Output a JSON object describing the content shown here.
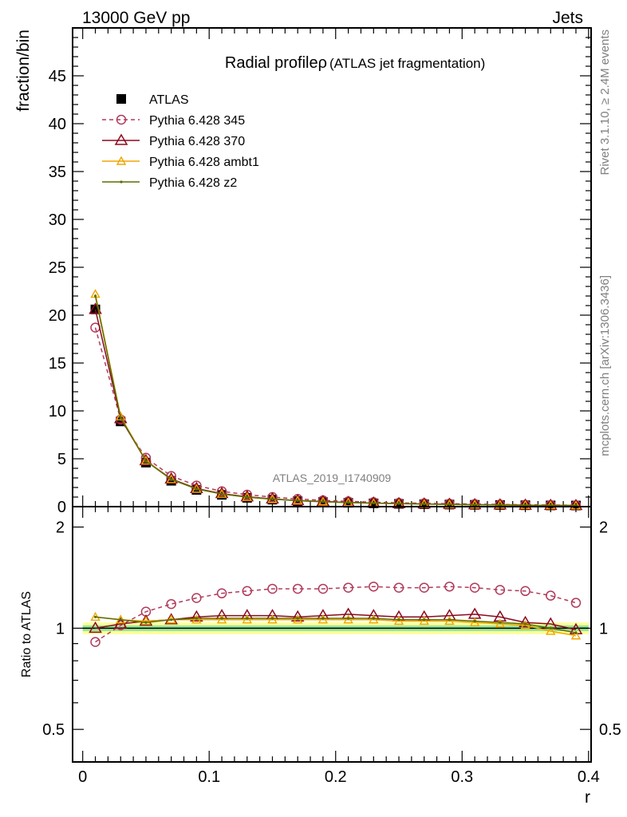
{
  "header": {
    "left": "13000 GeV pp",
    "right": "Jets"
  },
  "side_labels": {
    "rivet": "Rivet 3.1.10, ≥ 2.4M events",
    "mcplots": "mcplots.cern.ch [arXiv:1306.3436]"
  },
  "watermark": "ATLAS_2019_I1740909",
  "chart_data": [
    {
      "type": "line",
      "panel": "main",
      "title": "Radial profileρ",
      "subtitle": "(ATLAS jet fragmentation)",
      "xlabel": "",
      "ylabel": "fraction/bin",
      "xlim": [
        -0.008,
        0.402
      ],
      "ylim": [
        0,
        50
      ],
      "yticks": [
        0,
        5,
        10,
        15,
        20,
        25,
        30,
        35,
        40,
        45
      ],
      "ytick_labels": [
        "0",
        "5",
        "10",
        "15",
        "20",
        "25",
        "30",
        "35",
        "40",
        "45"
      ],
      "legend_position": "top-left",
      "x": [
        0.01,
        0.03,
        0.05,
        0.07,
        0.09,
        0.11,
        0.13,
        0.15,
        0.17,
        0.19,
        0.21,
        0.23,
        0.25,
        0.27,
        0.29,
        0.31,
        0.33,
        0.35,
        0.37,
        0.39
      ],
      "series": [
        {
          "name": "ATLAS",
          "color": "#000000",
          "marker": "square",
          "dash": "none",
          "values": [
            20.6,
            8.9,
            4.6,
            2.7,
            1.75,
            1.23,
            0.92,
            0.73,
            0.58,
            0.48,
            0.4,
            0.34,
            0.29,
            0.25,
            0.22,
            0.19,
            0.17,
            0.15,
            0.13,
            0.12
          ]
        },
        {
          "name": "Pythia 6.428 345",
          "color": "#b03a5a",
          "marker": "circle-open",
          "dash": "dashed",
          "values": [
            18.7,
            9.1,
            5.1,
            3.2,
            2.2,
            1.6,
            1.25,
            1.0,
            0.8,
            0.66,
            0.55,
            0.47,
            0.4,
            0.35,
            0.31,
            0.27,
            0.23,
            0.2,
            0.17,
            0.15
          ]
        },
        {
          "name": "Pythia 6.428 370",
          "color": "#8b0a1e",
          "marker": "triangle-open",
          "dash": "solid",
          "values": [
            20.6,
            9.2,
            4.8,
            2.9,
            1.9,
            1.37,
            1.03,
            0.81,
            0.64,
            0.54,
            0.45,
            0.38,
            0.32,
            0.28,
            0.25,
            0.21,
            0.19,
            0.16,
            0.14,
            0.12
          ]
        },
        {
          "name": "Pythia 6.428 ambt1",
          "color": "#f0a500",
          "marker": "triangle-small",
          "dash": "solid",
          "values": [
            22.2,
            9.4,
            4.8,
            2.85,
            1.85,
            1.32,
            0.99,
            0.78,
            0.62,
            0.51,
            0.43,
            0.36,
            0.31,
            0.27,
            0.23,
            0.2,
            0.18,
            0.15,
            0.13,
            0.11
          ]
        },
        {
          "name": "Pythia 6.428 z2",
          "color": "#5a6e00",
          "marker": "dot",
          "dash": "solid",
          "values": [
            22.0,
            9.3,
            4.75,
            2.85,
            1.85,
            1.32,
            0.99,
            0.78,
            0.62,
            0.51,
            0.43,
            0.36,
            0.31,
            0.27,
            0.23,
            0.2,
            0.18,
            0.15,
            0.13,
            0.12
          ]
        }
      ]
    },
    {
      "type": "line",
      "panel": "ratio",
      "xlabel": "r",
      "ylabel": "Ratio to ATLAS",
      "xlim": [
        -0.008,
        0.402
      ],
      "ylim": [
        0.4,
        2.3
      ],
      "y_scale": "log",
      "xticks": [
        0,
        0.1,
        0.2,
        0.3,
        0.4
      ],
      "xtick_labels": [
        "0",
        "0.1",
        "0.2",
        "0.3",
        "0.4"
      ],
      "yticks": [
        0.5,
        1,
        2
      ],
      "ytick_labels": [
        "0.5",
        "1",
        "2"
      ],
      "band": {
        "color_outer": "#ffff99",
        "color_inner": "#99e699",
        "inner_half_width": 0.02,
        "outer_half_width": 0.04
      },
      "x": [
        0.01,
        0.03,
        0.05,
        0.07,
        0.09,
        0.11,
        0.13,
        0.15,
        0.17,
        0.19,
        0.21,
        0.23,
        0.25,
        0.27,
        0.29,
        0.31,
        0.33,
        0.35,
        0.37,
        0.39
      ],
      "series": [
        {
          "name": "Pythia 6.428 345",
          "color": "#b03a5a",
          "marker": "circle-open",
          "dash": "dashed",
          "values": [
            0.91,
            1.02,
            1.12,
            1.18,
            1.23,
            1.27,
            1.29,
            1.31,
            1.31,
            1.31,
            1.32,
            1.33,
            1.32,
            1.32,
            1.33,
            1.32,
            1.3,
            1.29,
            1.25,
            1.19
          ]
        },
        {
          "name": "Pythia 6.428 370",
          "color": "#8b0a1e",
          "marker": "triangle-open",
          "dash": "solid",
          "values": [
            1.0,
            1.03,
            1.05,
            1.06,
            1.08,
            1.09,
            1.09,
            1.09,
            1.08,
            1.09,
            1.1,
            1.09,
            1.08,
            1.08,
            1.09,
            1.1,
            1.08,
            1.04,
            1.03,
            0.99
          ]
        },
        {
          "name": "Pythia 6.428 ambt1",
          "color": "#f0a500",
          "marker": "triangle-small",
          "dash": "solid",
          "values": [
            1.08,
            1.06,
            1.05,
            1.06,
            1.06,
            1.06,
            1.06,
            1.06,
            1.06,
            1.06,
            1.06,
            1.06,
            1.05,
            1.05,
            1.05,
            1.04,
            1.03,
            1.02,
            0.98,
            0.95
          ]
        },
        {
          "name": "Pythia 6.428 z2",
          "color": "#5a6e00",
          "marker": "dot",
          "dash": "solid",
          "values": [
            1.08,
            1.06,
            1.04,
            1.06,
            1.07,
            1.07,
            1.07,
            1.07,
            1.07,
            1.07,
            1.07,
            1.07,
            1.06,
            1.06,
            1.06,
            1.05,
            1.04,
            1.03,
            1.0,
            0.97
          ]
        }
      ]
    }
  ]
}
